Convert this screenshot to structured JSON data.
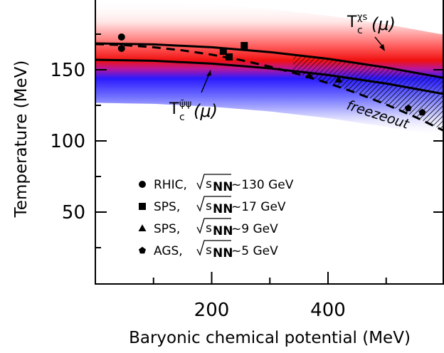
{
  "chart_data": {
    "type": "line",
    "xlabel": "Baryonic chemical potential (MeV)",
    "ylabel": "Temperature (MeV)",
    "xlim": [
      0,
      600
    ],
    "ylim": [
      0,
      200
    ],
    "x_ticks": [
      200,
      400
    ],
    "x_minor_ticks": [
      100,
      300,
      500
    ],
    "y_ticks": [
      50,
      100,
      150
    ],
    "grid": false,
    "series": [
      {
        "label": "T_c^{χs}(μ)",
        "color": "#e8000a",
        "style": "solid",
        "x": [
          0,
          100,
          200,
          300,
          400,
          500,
          600
        ],
        "y": [
          168.5,
          167.8,
          165.8,
          162.4,
          157.7,
          151.6,
          144.2
        ]
      },
      {
        "label": "T_c^{ψ̄ψ}(μ)",
        "color": "#1f00ff",
        "style": "solid",
        "x": [
          0,
          100,
          200,
          300,
          400,
          500,
          600
        ],
        "y": [
          157.0,
          156.3,
          154.3,
          151.0,
          146.3,
          140.3,
          132.9
        ]
      },
      {
        "label": "freezeout",
        "color": "#000000",
        "style": "dashed",
        "x": [
          0,
          50,
          100,
          150,
          200,
          250,
          300,
          350,
          400,
          450,
          500,
          550,
          600
        ],
        "y": [
          168,
          167.3,
          165.8,
          163.6,
          160.6,
          156.8,
          152.2,
          146.8,
          140.6,
          133.5,
          125.6,
          116.8,
          107.0
        ]
      }
    ],
    "points": [
      {
        "experiment": "RHIC",
        "marker": "circle",
        "x": [
          45,
          45
        ],
        "y": [
          173,
          165
        ]
      },
      {
        "experiment": "SPS_17",
        "marker": "square",
        "x": [
          220,
          230,
          256
        ],
        "y": [
          163,
          159,
          167
        ]
      },
      {
        "experiment": "SPS_9",
        "marker": "triangle",
        "x": [
          368,
          418
        ],
        "y": [
          146,
          143
        ]
      },
      {
        "experiment": "AGS",
        "marker": "pentagon",
        "x": [
          538,
          562
        ],
        "y": [
          123,
          120
        ]
      }
    ],
    "legend": [
      {
        "marker": "circle",
        "prefix": "RHIC,",
        "energy": "~130 GeV"
      },
      {
        "marker": "square",
        "prefix": "SPS,",
        "energy": "~17 GeV"
      },
      {
        "marker": "triangle",
        "prefix": "SPS,",
        "energy": "~9 GeV"
      },
      {
        "marker": "pentagon",
        "prefix": "AGS,",
        "energy": "~5 GeV"
      }
    ],
    "legend_placement": "bottom-left",
    "sqrt_s_label": "s",
    "sqrt_s_subscript": "NN",
    "annotations": {
      "chi_label": {
        "main": "T",
        "sub": "c",
        "sup": "χs",
        "arg": "(μ)"
      },
      "psi_label": {
        "main": "T",
        "sub": "c",
        "sup": "ψ̄ψ",
        "arg": "(μ)"
      },
      "freezeout_label": "freezeout"
    }
  }
}
